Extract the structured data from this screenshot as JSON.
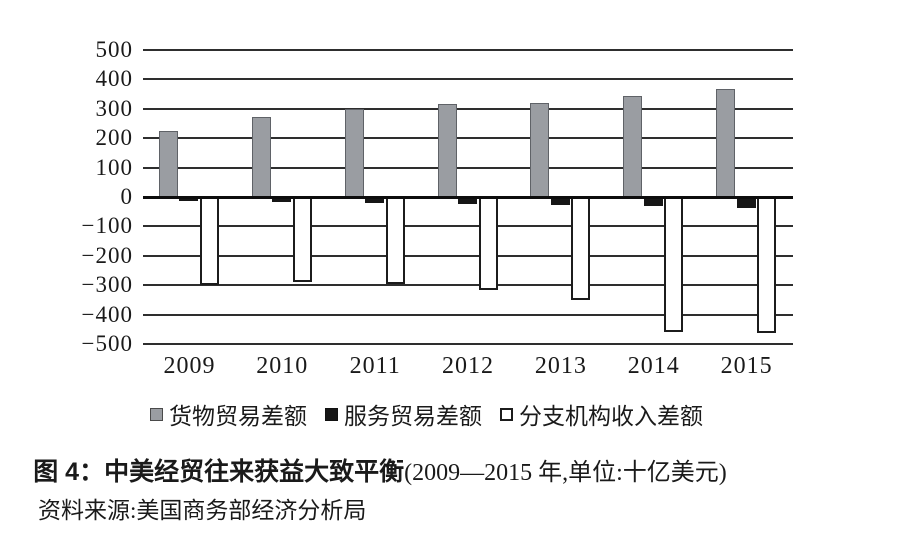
{
  "figure": {
    "title_bold": "图 4：中美经贸往来获益大致平衡",
    "title_note": "(2009—2015 年,单位:十亿美元)",
    "source": "资料来源:美国商务部经济分析局"
  },
  "chart_data": {
    "type": "bar",
    "title": "图 4：中美经贸往来获益大致平衡",
    "subtitle": "2009—2015 年,单位:十亿美元",
    "unit": "十亿美元",
    "categories": [
      "2009",
      "2010",
      "2011",
      "2012",
      "2013",
      "2014",
      "2015"
    ],
    "series": [
      {
        "name": "货物贸易差额",
        "color": "#9a9da2",
        "values": [
          226,
          273,
          298,
          315,
          321,
          344,
          367
        ]
      },
      {
        "name": "服务贸易差额",
        "color": "#161616",
        "values": [
          -12,
          -16,
          -20,
          -23,
          -26,
          -30,
          -36
        ]
      },
      {
        "name": "分支机构收入差额",
        "color": "#ffffff",
        "values": [
          -300,
          -290,
          -295,
          -318,
          -352,
          -458,
          -462
        ]
      }
    ],
    "ylim": [
      -500,
      500
    ],
    "y_ticks": [
      500,
      400,
      300,
      200,
      100,
      0,
      -100,
      -200,
      -300,
      -400,
      -500
    ],
    "grid": true,
    "legend_position": "bottom",
    "axis_text_color": "#1a1a1a",
    "grid_color": "#2e2e2e"
  }
}
